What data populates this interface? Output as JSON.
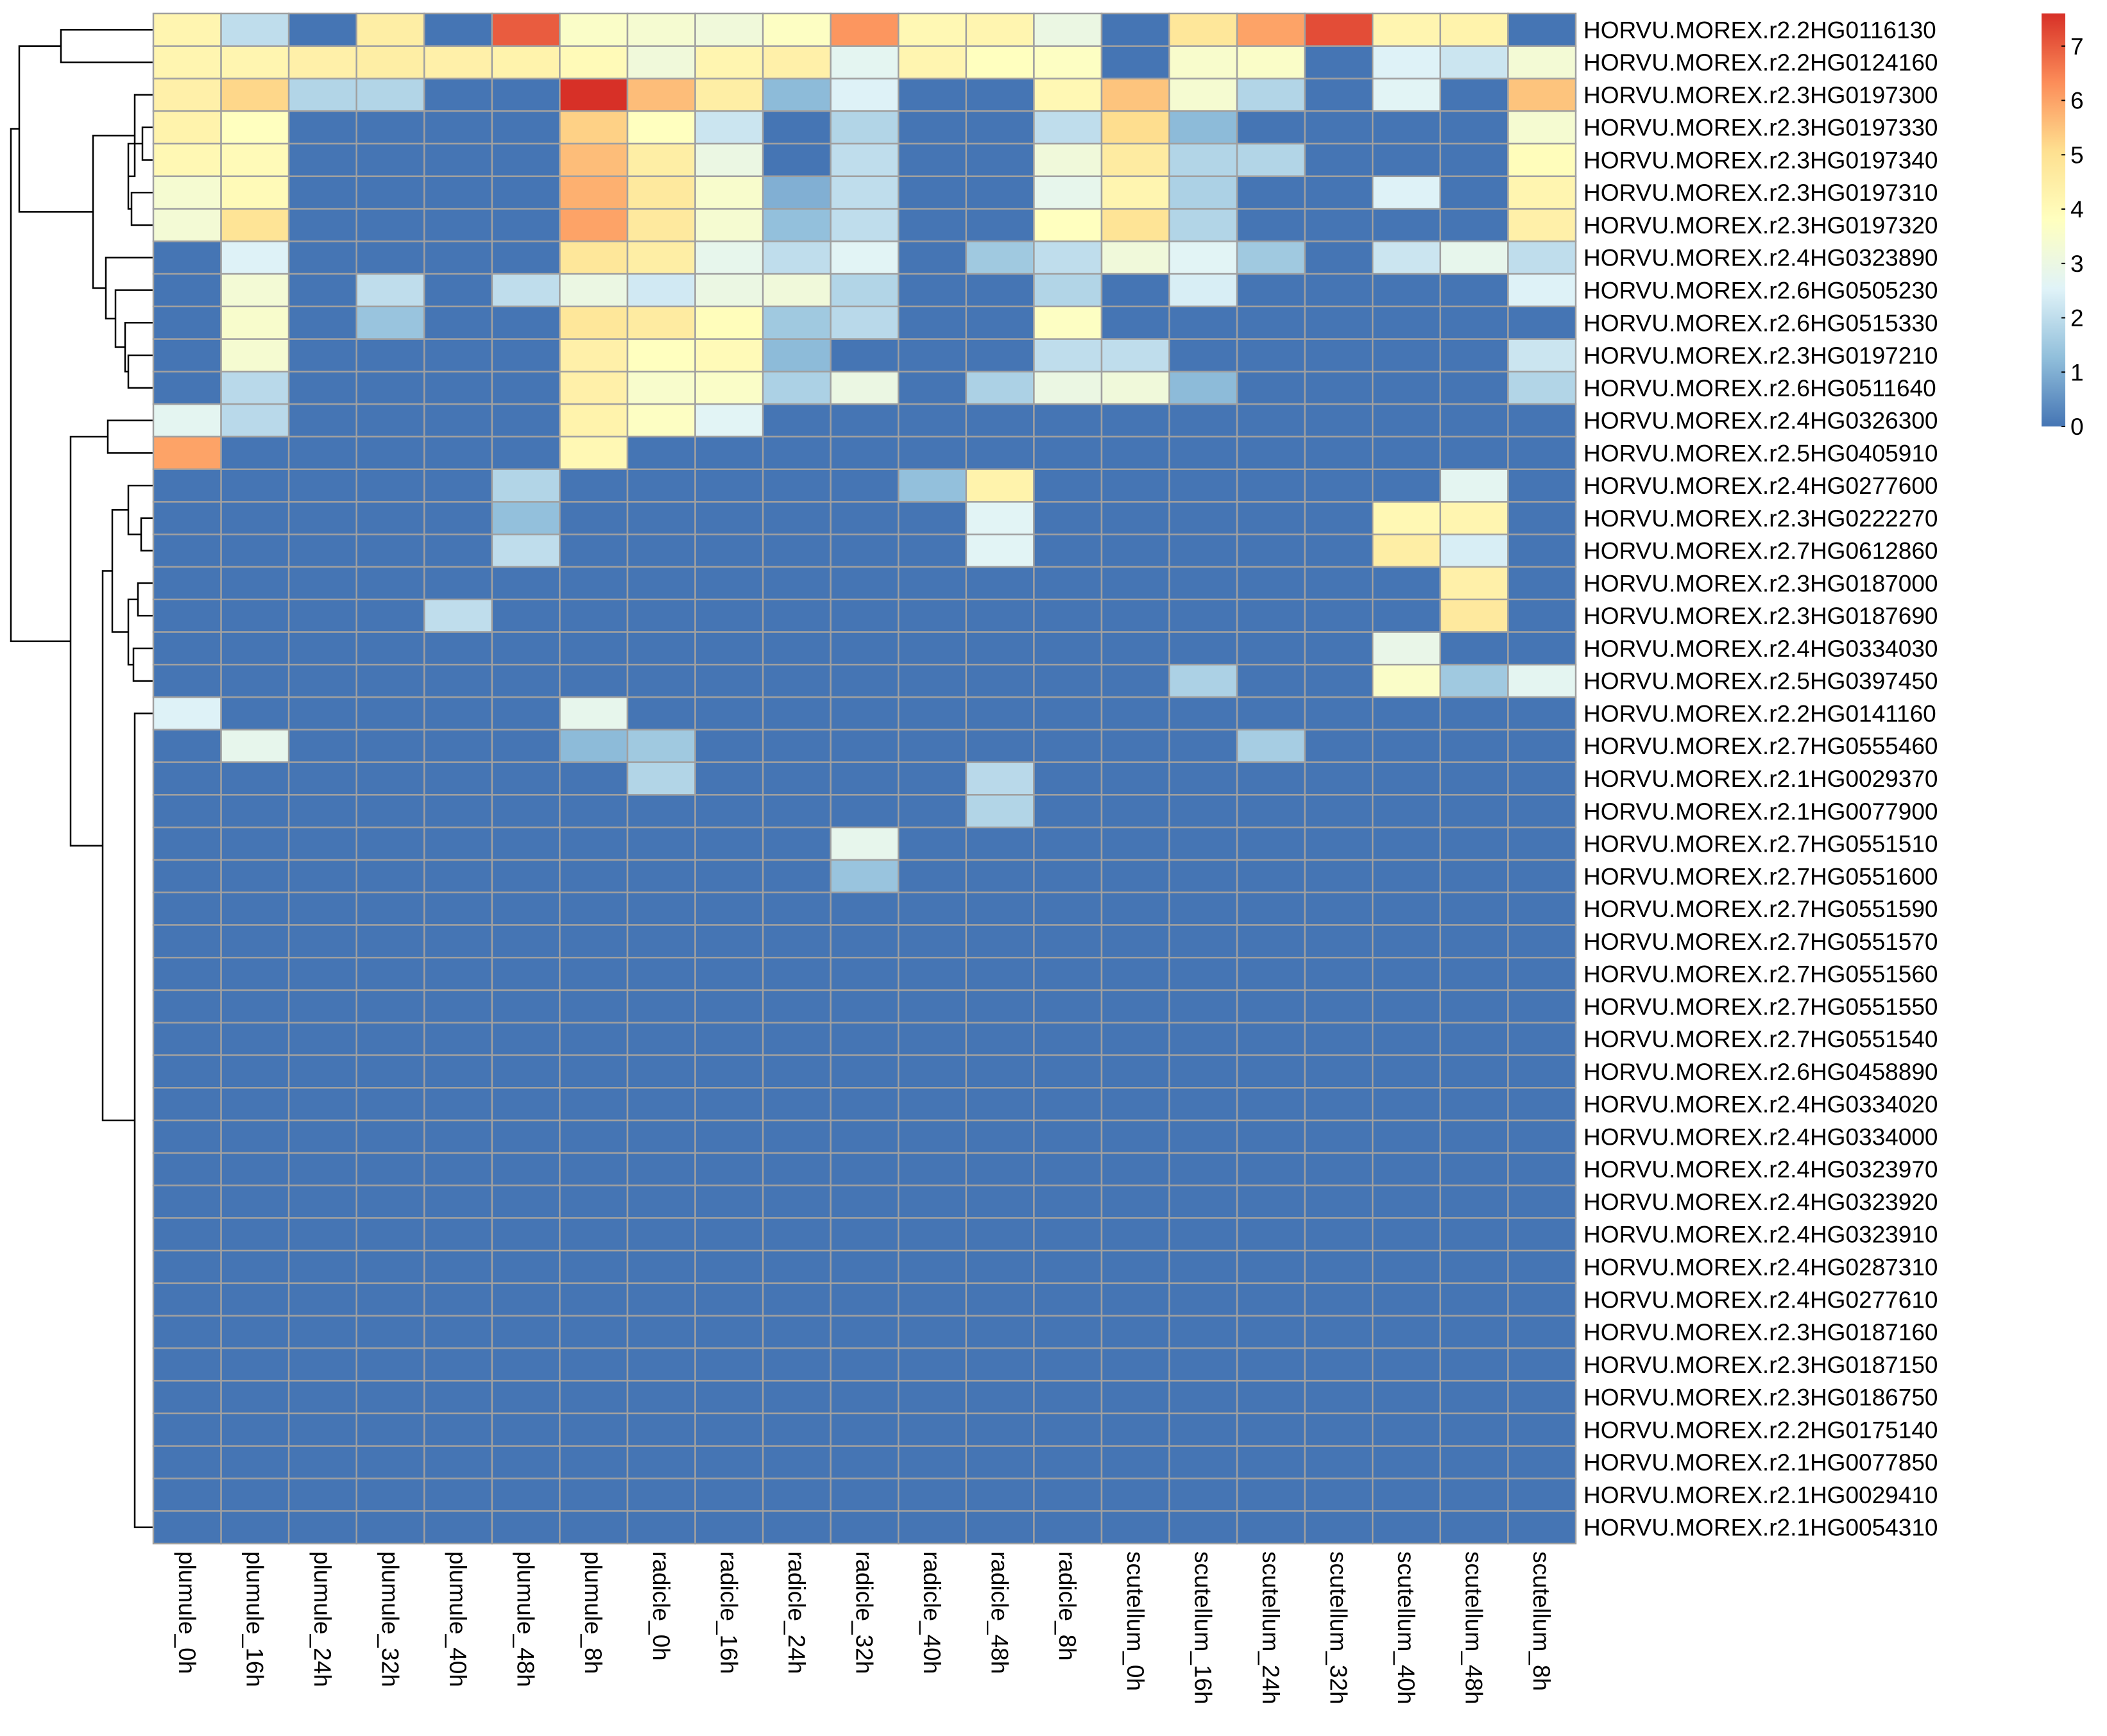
{
  "chart_data": {
    "type": "heatmap",
    "title": "",
    "xlabel": "",
    "ylabel": "",
    "columns": [
      "plumule_0h",
      "plumule_16h",
      "plumule_24h",
      "plumule_32h",
      "plumule_40h",
      "plumule_48h",
      "plumule_8h",
      "radicle_0h",
      "radicle_16h",
      "radicle_24h",
      "radicle_32h",
      "radicle_40h",
      "radicle_48h",
      "radicle_8h",
      "scutellum_0h",
      "scutellum_16h",
      "scutellum_24h",
      "scutellum_32h",
      "scutellum_40h",
      "scutellum_48h",
      "scutellum_8h"
    ],
    "rows": [
      "HORVU.MOREX.r2.2HG0116130",
      "HORVU.MOREX.r2.2HG0124160",
      "HORVU.MOREX.r2.3HG0197300",
      "HORVU.MOREX.r2.3HG0197330",
      "HORVU.MOREX.r2.3HG0197340",
      "HORVU.MOREX.r2.3HG0197310",
      "HORVU.MOREX.r2.3HG0197320",
      "HORVU.MOREX.r2.4HG0323890",
      "HORVU.MOREX.r2.6HG0505230",
      "HORVU.MOREX.r2.6HG0515330",
      "HORVU.MOREX.r2.3HG0197210",
      "HORVU.MOREX.r2.6HG0511640",
      "HORVU.MOREX.r2.4HG0326300",
      "HORVU.MOREX.r2.5HG0405910",
      "HORVU.MOREX.r2.4HG0277600",
      "HORVU.MOREX.r2.3HG0222270",
      "HORVU.MOREX.r2.7HG0612860",
      "HORVU.MOREX.r2.3HG0187000",
      "HORVU.MOREX.r2.3HG0187690",
      "HORVU.MOREX.r2.4HG0334030",
      "HORVU.MOREX.r2.5HG0397450",
      "HORVU.MOREX.r2.2HG0141160",
      "HORVU.MOREX.r2.7HG0555460",
      "HORVU.MOREX.r2.1HG0029370",
      "HORVU.MOREX.r2.1HG0077900",
      "HORVU.MOREX.r2.7HG0551510",
      "HORVU.MOREX.r2.7HG0551600",
      "HORVU.MOREX.r2.7HG0551590",
      "HORVU.MOREX.r2.7HG0551570",
      "HORVU.MOREX.r2.7HG0551560",
      "HORVU.MOREX.r2.7HG0551550",
      "HORVU.MOREX.r2.7HG0551540",
      "HORVU.MOREX.r2.6HG0458890",
      "HORVU.MOREX.r2.4HG0334020",
      "HORVU.MOREX.r2.4HG0334000",
      "HORVU.MOREX.r2.4HG0323970",
      "HORVU.MOREX.r2.4HG0323920",
      "HORVU.MOREX.r2.4HG0323910",
      "HORVU.MOREX.r2.4HG0287310",
      "HORVU.MOREX.r2.4HG0277610",
      "HORVU.MOREX.r2.3HG0187160",
      "HORVU.MOREX.r2.3HG0187150",
      "HORVU.MOREX.r2.3HG0186750",
      "HORVU.MOREX.r2.2HG0175140",
      "HORVU.MOREX.r2.1HG0077850",
      "HORVU.MOREX.r2.1HG0029410",
      "HORVU.MOREX.r2.1HG0054310"
    ],
    "values": [
      [
        4.2,
        2.0,
        0,
        4.5,
        0,
        7.0,
        3.6,
        3.4,
        3.2,
        3.7,
        6.2,
        4.1,
        4.2,
        3.0,
        0,
        4.8,
        6.0,
        7.2,
        4.2,
        4.3,
        0
      ],
      [
        4.2,
        4.2,
        4.4,
        4.5,
        4.4,
        4.3,
        4.0,
        3.2,
        4.2,
        4.4,
        2.7,
        4.2,
        3.8,
        3.7,
        0,
        3.5,
        3.6,
        0,
        2.5,
        2.2,
        3.3
      ],
      [
        4.4,
        5.2,
        1.8,
        1.8,
        0,
        0,
        7.6,
        5.6,
        4.5,
        1.2,
        2.5,
        0,
        0,
        4.1,
        5.5,
        3.4,
        1.8,
        0,
        2.6,
        0,
        5.5
      ],
      [
        4.3,
        3.8,
        0,
        0,
        0,
        0,
        5.3,
        3.8,
        2.2,
        0,
        1.8,
        0,
        0,
        2.0,
        5.1,
        1.2,
        0,
        0,
        0,
        0,
        3.4
      ],
      [
        4.1,
        4.0,
        0,
        0,
        0,
        0,
        5.6,
        4.5,
        3.0,
        0,
        2.0,
        0,
        0,
        3.2,
        4.6,
        1.8,
        1.8,
        0,
        0,
        0,
        3.9
      ],
      [
        3.4,
        4.0,
        0,
        0,
        0,
        0,
        5.8,
        4.7,
        3.5,
        1.0,
        2.0,
        0,
        0,
        2.8,
        4.2,
        1.7,
        0,
        0,
        2.5,
        0,
        4.2
      ],
      [
        3.3,
        4.9,
        0,
        0,
        0,
        0,
        6.0,
        4.7,
        3.4,
        1.3,
        2.0,
        0,
        0,
        3.8,
        4.9,
        1.8,
        0,
        0,
        0,
        0,
        4.4
      ],
      [
        0,
        2.5,
        0,
        0,
        0,
        0,
        4.8,
        4.5,
        2.8,
        2.0,
        2.6,
        0,
        1.5,
        2.0,
        3.2,
        2.6,
        1.5,
        0,
        2.2,
        2.8,
        2.0
      ],
      [
        0,
        3.3,
        0,
        2.0,
        0,
        2.0,
        3.0,
        2.3,
        3.0,
        3.2,
        1.8,
        0,
        0,
        1.8,
        0,
        2.4,
        0,
        0,
        0,
        0,
        2.5
      ],
      [
        0,
        3.5,
        0,
        1.4,
        0,
        0,
        4.8,
        4.6,
        3.9,
        1.5,
        1.9,
        0,
        0,
        3.7,
        0,
        0,
        0,
        0,
        0,
        0,
        0
      ],
      [
        0,
        3.4,
        0,
        0,
        0,
        0,
        4.4,
        3.8,
        4.0,
        1.2,
        0,
        0,
        0,
        2.0,
        2.0,
        0,
        0,
        0,
        0,
        0,
        2.2
      ],
      [
        0,
        1.9,
        0,
        0,
        0,
        0,
        4.4,
        3.5,
        3.6,
        1.7,
        3.0,
        0,
        1.7,
        3.0,
        3.2,
        1.2,
        0,
        0,
        0,
        0,
        1.8
      ],
      [
        2.7,
        1.9,
        0,
        0,
        0,
        0,
        4.3,
        3.7,
        2.6,
        0,
        0,
        0,
        0,
        0,
        0,
        0,
        0,
        0,
        0,
        0,
        0
      ],
      [
        6.0,
        0,
        0,
        0,
        0,
        0,
        4.1,
        0,
        0,
        0,
        0,
        0,
        0,
        0,
        0,
        0,
        0,
        0,
        0,
        0,
        0
      ],
      [
        0,
        0,
        0,
        0,
        0,
        1.8,
        0,
        0,
        0,
        0,
        0,
        1.3,
        4.3,
        0,
        0,
        0,
        0,
        0,
        0,
        2.7,
        0
      ],
      [
        0,
        0,
        0,
        0,
        0,
        1.3,
        0,
        0,
        0,
        0,
        0,
        0,
        2.6,
        0,
        0,
        0,
        0,
        0,
        4.1,
        4.2,
        0
      ],
      [
        0,
        0,
        0,
        0,
        0,
        2.0,
        0,
        0,
        0,
        0,
        0,
        0,
        2.6,
        0,
        0,
        0,
        0,
        0,
        4.5,
        2.4,
        0
      ],
      [
        0,
        0,
        0,
        0,
        0,
        0,
        0,
        0,
        0,
        0,
        0,
        0,
        0,
        0,
        0,
        0,
        0,
        0,
        0,
        4.4,
        0
      ],
      [
        0,
        0,
        0,
        0,
        2.0,
        0,
        0,
        0,
        0,
        0,
        0,
        0,
        0,
        0,
        0,
        0,
        0,
        0,
        0,
        4.7,
        0
      ],
      [
        0,
        0,
        0,
        0,
        0,
        0,
        0,
        0,
        0,
        0,
        0,
        0,
        0,
        0,
        0,
        0,
        0,
        0,
        2.9,
        0,
        0
      ],
      [
        0,
        0,
        0,
        0,
        0,
        0,
        0,
        0,
        0,
        0,
        0,
        0,
        0,
        0,
        0,
        1.7,
        0,
        0,
        3.6,
        1.5,
        2.7
      ],
      [
        2.5,
        0,
        0,
        0,
        0,
        0,
        2.8,
        0,
        0,
        0,
        0,
        0,
        0,
        0,
        0,
        0,
        0,
        0,
        0,
        0,
        0
      ],
      [
        0,
        2.8,
        0,
        0,
        0,
        0,
        1.2,
        1.5,
        0,
        0,
        0,
        0,
        0,
        0,
        0,
        0,
        1.6,
        0,
        0,
        0,
        0
      ],
      [
        0,
        0,
        0,
        0,
        0,
        0,
        0,
        1.8,
        0,
        0,
        0,
        0,
        1.9,
        0,
        0,
        0,
        0,
        0,
        0,
        0,
        0
      ],
      [
        0,
        0,
        0,
        0,
        0,
        0,
        0,
        0,
        0,
        0,
        0,
        0,
        1.8,
        0,
        0,
        0,
        0,
        0,
        0,
        0,
        0
      ],
      [
        0,
        0,
        0,
        0,
        0,
        0,
        0,
        0,
        0,
        0,
        2.8,
        0,
        0,
        0,
        0,
        0,
        0,
        0,
        0,
        0,
        0
      ],
      [
        0,
        0,
        0,
        0,
        0,
        0,
        0,
        0,
        0,
        0,
        1.4,
        0,
        0,
        0,
        0,
        0,
        0,
        0,
        0,
        0,
        0
      ],
      [
        0,
        0,
        0,
        0,
        0,
        0,
        0,
        0,
        0,
        0,
        0,
        0,
        0,
        0,
        0,
        0,
        0,
        0,
        0,
        0,
        0
      ],
      [
        0,
        0,
        0,
        0,
        0,
        0,
        0,
        0,
        0,
        0,
        0,
        0,
        0,
        0,
        0,
        0,
        0,
        0,
        0,
        0,
        0
      ],
      [
        0,
        0,
        0,
        0,
        0,
        0,
        0,
        0,
        0,
        0,
        0,
        0,
        0,
        0,
        0,
        0,
        0,
        0,
        0,
        0,
        0
      ],
      [
        0,
        0,
        0,
        0,
        0,
        0,
        0,
        0,
        0,
        0,
        0,
        0,
        0,
        0,
        0,
        0,
        0,
        0,
        0,
        0,
        0
      ],
      [
        0,
        0,
        0,
        0,
        0,
        0,
        0,
        0,
        0,
        0,
        0,
        0,
        0,
        0,
        0,
        0,
        0,
        0,
        0,
        0,
        0
      ],
      [
        0,
        0,
        0,
        0,
        0,
        0,
        0,
        0,
        0,
        0,
        0,
        0,
        0,
        0,
        0,
        0,
        0,
        0,
        0,
        0,
        0
      ],
      [
        0,
        0,
        0,
        0,
        0,
        0,
        0,
        0,
        0,
        0,
        0,
        0,
        0,
        0,
        0,
        0,
        0,
        0,
        0,
        0,
        0
      ],
      [
        0,
        0,
        0,
        0,
        0,
        0,
        0,
        0,
        0,
        0,
        0,
        0,
        0,
        0,
        0,
        0,
        0,
        0,
        0,
        0,
        0
      ],
      [
        0,
        0,
        0,
        0,
        0,
        0,
        0,
        0,
        0,
        0,
        0,
        0,
        0,
        0,
        0,
        0,
        0,
        0,
        0,
        0,
        0
      ],
      [
        0,
        0,
        0,
        0,
        0,
        0,
        0,
        0,
        0,
        0,
        0,
        0,
        0,
        0,
        0,
        0,
        0,
        0,
        0,
        0,
        0
      ],
      [
        0,
        0,
        0,
        0,
        0,
        0,
        0,
        0,
        0,
        0,
        0,
        0,
        0,
        0,
        0,
        0,
        0,
        0,
        0,
        0,
        0
      ],
      [
        0,
        0,
        0,
        0,
        0,
        0,
        0,
        0,
        0,
        0,
        0,
        0,
        0,
        0,
        0,
        0,
        0,
        0,
        0,
        0,
        0
      ],
      [
        0,
        0,
        0,
        0,
        0,
        0,
        0,
        0,
        0,
        0,
        0,
        0,
        0,
        0,
        0,
        0,
        0,
        0,
        0,
        0,
        0
      ],
      [
        0,
        0,
        0,
        0,
        0,
        0,
        0,
        0,
        0,
        0,
        0,
        0,
        0,
        0,
        0,
        0,
        0,
        0,
        0,
        0,
        0
      ],
      [
        0,
        0,
        0,
        0,
        0,
        0,
        0,
        0,
        0,
        0,
        0,
        0,
        0,
        0,
        0,
        0,
        0,
        0,
        0,
        0,
        0
      ],
      [
        0,
        0,
        0,
        0,
        0,
        0,
        0,
        0,
        0,
        0,
        0,
        0,
        0,
        0,
        0,
        0,
        0,
        0,
        0,
        0,
        0
      ],
      [
        0,
        0,
        0,
        0,
        0,
        0,
        0,
        0,
        0,
        0,
        0,
        0,
        0,
        0,
        0,
        0,
        0,
        0,
        0,
        0,
        0
      ],
      [
        0,
        0,
        0,
        0,
        0,
        0,
        0,
        0,
        0,
        0,
        0,
        0,
        0,
        0,
        0,
        0,
        0,
        0,
        0,
        0,
        0
      ],
      [
        0,
        0,
        0,
        0,
        0,
        0,
        0,
        0,
        0,
        0,
        0,
        0,
        0,
        0,
        0,
        0,
        0,
        0,
        0,
        0,
        0
      ],
      [
        0,
        0,
        0,
        0,
        0,
        0,
        0,
        0,
        0,
        0,
        0,
        0,
        0,
        0,
        0,
        0,
        0,
        0,
        0,
        0,
        0
      ]
    ],
    "color_scale": {
      "min": 0,
      "max": 7.6,
      "stops": [
        "#4575B4",
        "#91BFDB",
        "#E0F3F8",
        "#FFFFBF",
        "#FEE090",
        "#FC8D59",
        "#D73027"
      ],
      "ticks": [
        0,
        1,
        2,
        3,
        4,
        5,
        6,
        7
      ],
      "tick_labels": [
        "0",
        "1",
        "2",
        "3",
        "4",
        "5",
        "6",
        "7"
      ]
    },
    "legend": "top-right",
    "cell_border_color": "#A0A0A0",
    "row_dendrogram": true,
    "column_dendrogram": false
  }
}
